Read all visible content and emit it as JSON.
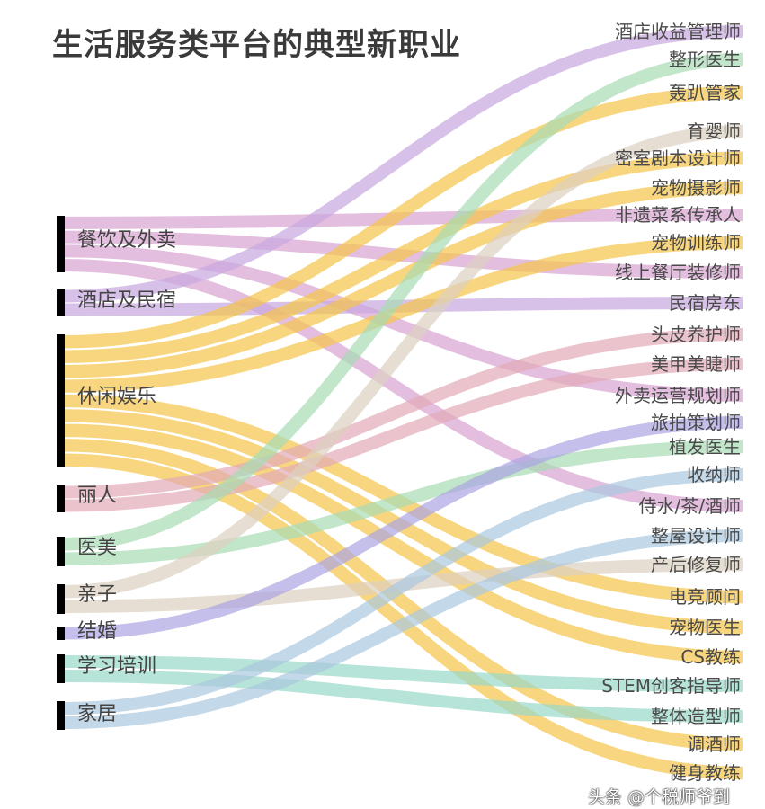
{
  "title": "生活服务类平台的典型新职业",
  "watermark": "头条 @个税师爷到",
  "sources": [
    {
      "name": "餐饮及外卖",
      "color": "#d7a3d2"
    },
    {
      "name": "酒店及民宿",
      "color": "#c8a6de"
    },
    {
      "name": "休闲娱乐",
      "color": "#f5c549"
    },
    {
      "name": "丽人",
      "color": "#e2a9b7"
    },
    {
      "name": "医美",
      "color": "#a6dcb4"
    },
    {
      "name": "亲子",
      "color": "#ddd0c0"
    },
    {
      "name": "结婚",
      "color": "#aba4e2"
    },
    {
      "name": "学习培训",
      "color": "#98d8c8"
    },
    {
      "name": "家居",
      "color": "#a9c8de"
    }
  ],
  "targets": [
    "酒店收益管理师",
    "整形医生",
    "轰趴管家",
    "育婴师",
    "密室剧本设计师",
    "宠物摄影师",
    "非遗菜系传承人",
    "宠物训练师",
    "线上餐厅装修师",
    "民宿房东",
    "头皮养护师",
    "美甲美睫师",
    "外卖运营规划师",
    "旅拍策划师",
    "植发医生",
    "收纳师",
    "侍水/茶/酒师",
    "整屋设计师",
    "产后修复师",
    "电竞顾问",
    "宠物医生",
    "CS教练",
    "STEM创客指导师",
    "整体造型师",
    "调酒师",
    "健身教练"
  ],
  "links": [
    {
      "source": "餐饮及外卖",
      "target": "非遗菜系传承人"
    },
    {
      "source": "餐饮及外卖",
      "target": "线上餐厅装修师"
    },
    {
      "source": "餐饮及外卖",
      "target": "外卖运营规划师"
    },
    {
      "source": "餐饮及外卖",
      "target": "侍水/茶/酒师"
    },
    {
      "source": "酒店及民宿",
      "target": "酒店收益管理师"
    },
    {
      "source": "酒店及民宿",
      "target": "民宿房东"
    },
    {
      "source": "休闲娱乐",
      "target": "轰趴管家"
    },
    {
      "source": "休闲娱乐",
      "target": "密室剧本设计师"
    },
    {
      "source": "休闲娱乐",
      "target": "宠物摄影师"
    },
    {
      "source": "休闲娱乐",
      "target": "宠物训练师"
    },
    {
      "source": "休闲娱乐",
      "target": "电竞顾问"
    },
    {
      "source": "休闲娱乐",
      "target": "宠物医生"
    },
    {
      "source": "休闲娱乐",
      "target": "CS教练"
    },
    {
      "source": "休闲娱乐",
      "target": "调酒师"
    },
    {
      "source": "休闲娱乐",
      "target": "健身教练"
    },
    {
      "source": "丽人",
      "target": "头皮养护师"
    },
    {
      "source": "丽人",
      "target": "美甲美睫师"
    },
    {
      "source": "医美",
      "target": "整形医生"
    },
    {
      "source": "医美",
      "target": "植发医生"
    },
    {
      "source": "亲子",
      "target": "育婴师"
    },
    {
      "source": "亲子",
      "target": "产后修复师"
    },
    {
      "source": "结婚",
      "target": "旅拍策划师"
    },
    {
      "source": "学习培训",
      "target": "STEM创客指导师"
    },
    {
      "source": "学习培训",
      "target": "整体造型师"
    },
    {
      "source": "家居",
      "target": "收纳师"
    },
    {
      "source": "家居",
      "target": "整屋设计师"
    }
  ]
}
